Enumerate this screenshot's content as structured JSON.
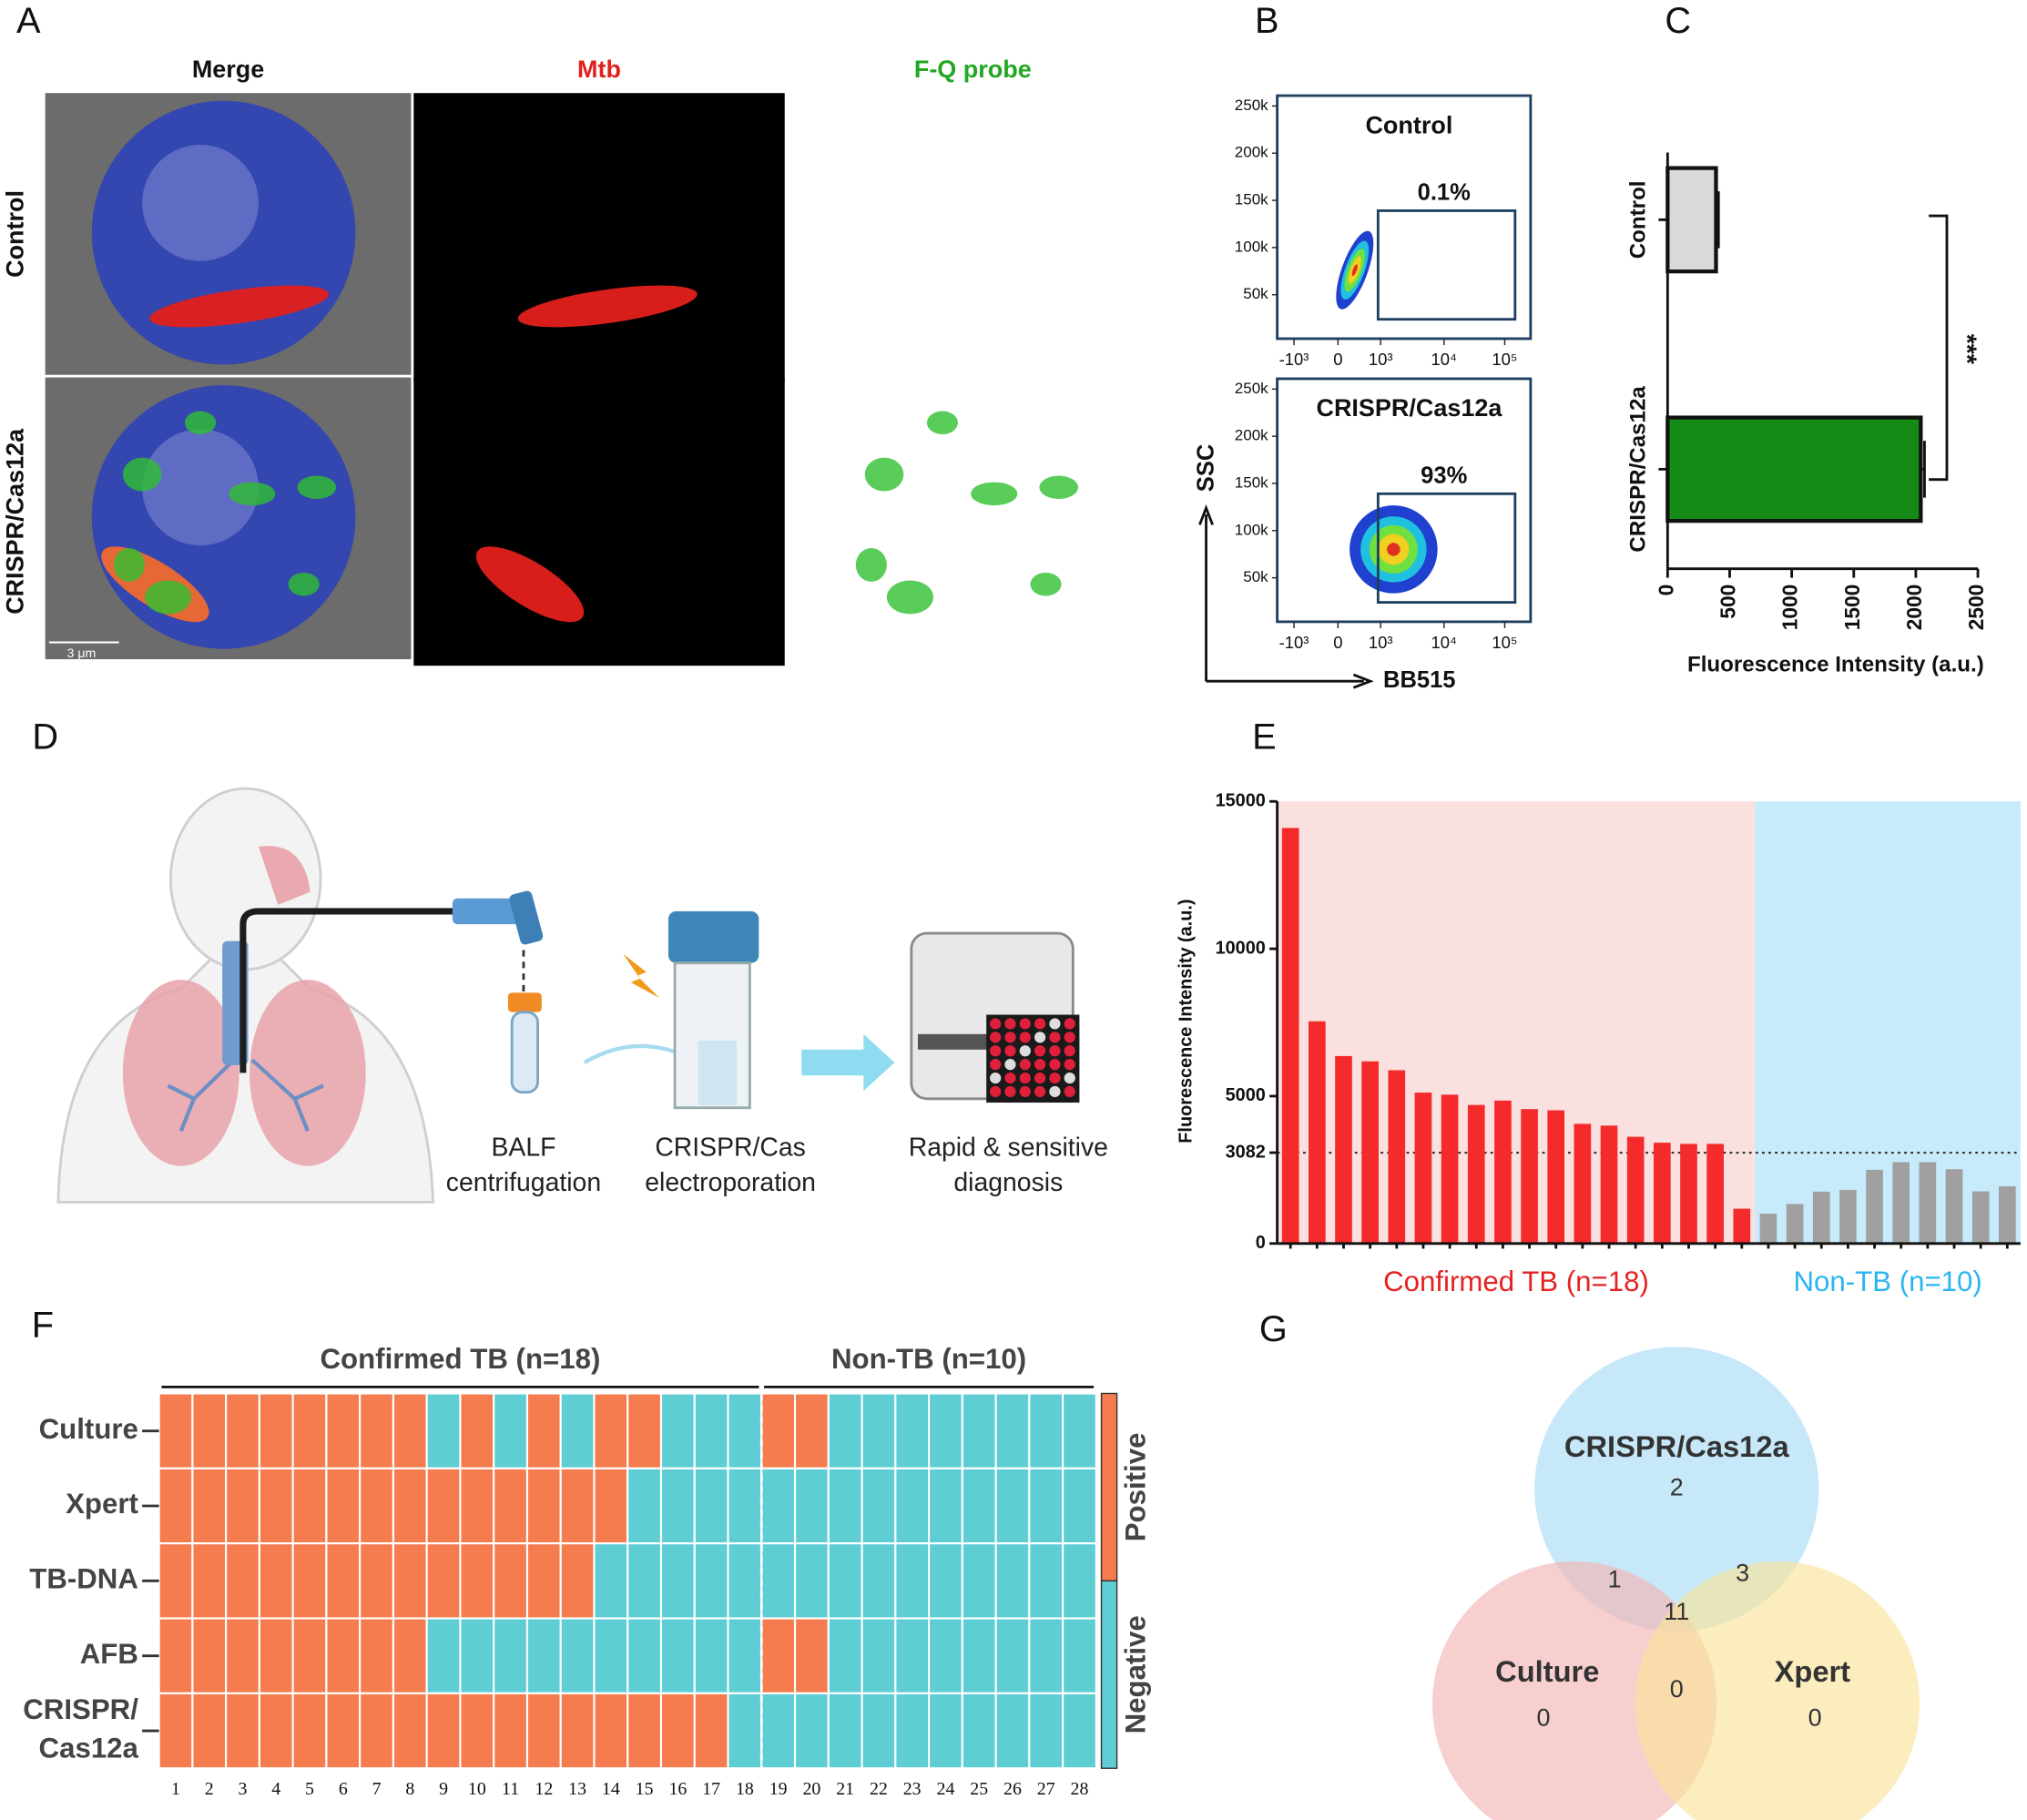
{
  "panel_labels": [
    "A",
    "B",
    "C",
    "D",
    "E",
    "F",
    "G"
  ],
  "panel_a": {
    "columns": [
      {
        "label": "Merge",
        "color": "#111111"
      },
      {
        "label": "Mtb",
        "color": "#e0201c"
      },
      {
        "label": "F-Q probe",
        "color": "#22a722"
      }
    ],
    "rows": [
      "Control",
      "CRISPR/Cas12a"
    ],
    "scale_bar": "3 μm"
  },
  "panel_b": {
    "plots": [
      {
        "title": "Control",
        "gate": "0.1%"
      },
      {
        "title": "CRISPR/Cas12a",
        "gate": "93%"
      }
    ],
    "y_ticks": [
      "250k",
      "200k",
      "150k",
      "100k",
      "50k"
    ],
    "x_ticks": [
      "-10³",
      "0",
      "10³",
      "10⁴",
      "10⁵"
    ],
    "y_axis": "SSC",
    "x_axis": "BB515"
  },
  "chart_data": [
    {
      "type": "bar",
      "orientation": "horizontal",
      "categories": [
        "Control",
        "CRISPR/Cas12a"
      ],
      "values": [
        390,
        2040
      ],
      "errors": [
        20,
        30
      ],
      "colors": [
        "#d9d9d9",
        "#158a15"
      ],
      "xlim": [
        0,
        2500
      ],
      "xticks": [
        0,
        500,
        1000,
        1500,
        2000,
        2500
      ],
      "xlabel": "Fluorescence Intensity (a.u.)",
      "annotation": "***"
    },
    {
      "type": "bar",
      "orientation": "vertical",
      "ylabel": "Fluorescence Intensity (a.u.)",
      "ylim": [
        0,
        15000
      ],
      "yticks": [
        0,
        3082,
        5000,
        10000,
        15000
      ],
      "threshold": 3082,
      "series": [
        {
          "name": "Confirmed TB (n=18)",
          "color": "#f52a2a",
          "background": "#fbe0e0",
          "label_color": "#e52222",
          "values": [
            14100,
            7540,
            6360,
            6180,
            5880,
            5120,
            5050,
            4700,
            4850,
            4560,
            4520,
            4060,
            4000,
            3620,
            3420,
            3380,
            3380,
            1180
          ]
        },
        {
          "name": "Non-TB (n=10)",
          "color": "#a0a0a0",
          "background": "#c7ebfa",
          "label_color": "#2bb5f0",
          "values": [
            1010,
            1340,
            1760,
            1820,
            2500,
            2760,
            2760,
            2520,
            1770,
            1940
          ]
        }
      ]
    }
  ],
  "panel_d": {
    "steps": [
      [
        "BALF",
        "centrifugation"
      ],
      [
        "CRISPR/Cas",
        "electroporation"
      ],
      [
        "Rapid & sensitive",
        "diagnosis"
      ]
    ]
  },
  "heatmap": {
    "groups": [
      {
        "label": "Confirmed TB (n=18)",
        "columns": [
          1,
          2,
          3,
          4,
          5,
          6,
          7,
          8,
          9,
          10,
          11,
          12,
          13,
          14,
          15,
          16,
          17,
          18
        ]
      },
      {
        "label": "Non-TB (n=10)",
        "columns": [
          19,
          20,
          21,
          22,
          23,
          24,
          25,
          26,
          27,
          28
        ]
      }
    ],
    "rows": [
      {
        "label": [
          "Culture"
        ],
        "values": [
          1,
          1,
          1,
          1,
          1,
          1,
          1,
          1,
          0,
          1,
          0,
          1,
          0,
          1,
          1,
          0,
          0,
          0,
          1,
          1,
          0,
          0,
          0,
          0,
          0,
          0,
          0,
          0
        ]
      },
      {
        "label": [
          "Xpert"
        ],
        "values": [
          1,
          1,
          1,
          1,
          1,
          1,
          1,
          1,
          1,
          1,
          1,
          1,
          1,
          1,
          0,
          0,
          0,
          0,
          0,
          0,
          0,
          0,
          0,
          0,
          0,
          0,
          0,
          0
        ]
      },
      {
        "label": [
          "TB-DNA"
        ],
        "values": [
          1,
          1,
          1,
          1,
          1,
          1,
          1,
          1,
          1,
          1,
          1,
          1,
          1,
          0,
          0,
          0,
          0,
          0,
          0,
          0,
          0,
          0,
          0,
          0,
          0,
          0,
          0,
          0
        ]
      },
      {
        "label": [
          "AFB"
        ],
        "values": [
          1,
          1,
          1,
          1,
          1,
          1,
          1,
          1,
          0,
          0,
          0,
          0,
          0,
          0,
          0,
          0,
          0,
          0,
          1,
          1,
          0,
          0,
          0,
          0,
          0,
          0,
          0,
          0
        ]
      },
      {
        "label": [
          "CRISPR/",
          "Cas12a"
        ],
        "values": [
          1,
          1,
          1,
          1,
          1,
          1,
          1,
          1,
          1,
          1,
          1,
          1,
          1,
          1,
          1,
          1,
          1,
          0,
          0,
          0,
          0,
          0,
          0,
          0,
          0,
          0,
          0,
          0
        ]
      }
    ],
    "legend": [
      {
        "label": "Positive",
        "color": "#f47c4e"
      },
      {
        "label": "Negative",
        "color": "#5ecdd4"
      }
    ]
  },
  "venn": {
    "sets": [
      {
        "name": "CRISPR/Cas12a",
        "color": "#a9dcf5",
        "count": 2
      },
      {
        "name": "Culture",
        "color": "#f5b5b5",
        "count": 0
      },
      {
        "name": "Xpert",
        "color": "#f9e39a",
        "count": 0
      }
    ],
    "crispr_culture": 1,
    "crispr_xpert": 3,
    "culture_xpert": 0,
    "all_three": 11
  }
}
